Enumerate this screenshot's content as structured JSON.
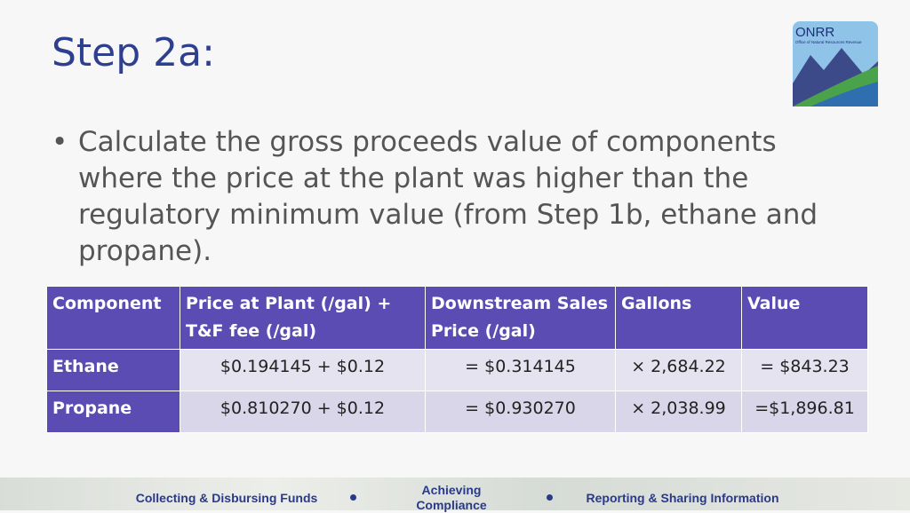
{
  "header": {
    "title": "Step 2a:"
  },
  "logo": {
    "title": "ONRR",
    "subtitle": "Office of Natural Resources Revenue"
  },
  "bullets": [
    "Calculate the gross proceeds value of components where the price at the plant was higher than the regulatory minimum value (from Step 1b, ethane and propane)."
  ],
  "table": {
    "headers": [
      "Component",
      "Price at Plant (/gal) + T&F fee (/gal)",
      "Downstream Sales Price (/gal)",
      "Gallons",
      "Value"
    ],
    "rows": [
      [
        "Ethane",
        "$0.194145 + $0.12",
        "= $0.314145",
        "× 2,684.22",
        "= $843.23"
      ],
      [
        "Propane",
        "$0.810270 + $0.12",
        "= $0.930270",
        "× 2,038.99",
        "=$1,896.81"
      ]
    ]
  },
  "footer": {
    "items": [
      "Collecting & Disbursing Funds",
      "Achieving Compliance",
      "Reporting & Sharing Information"
    ]
  }
}
